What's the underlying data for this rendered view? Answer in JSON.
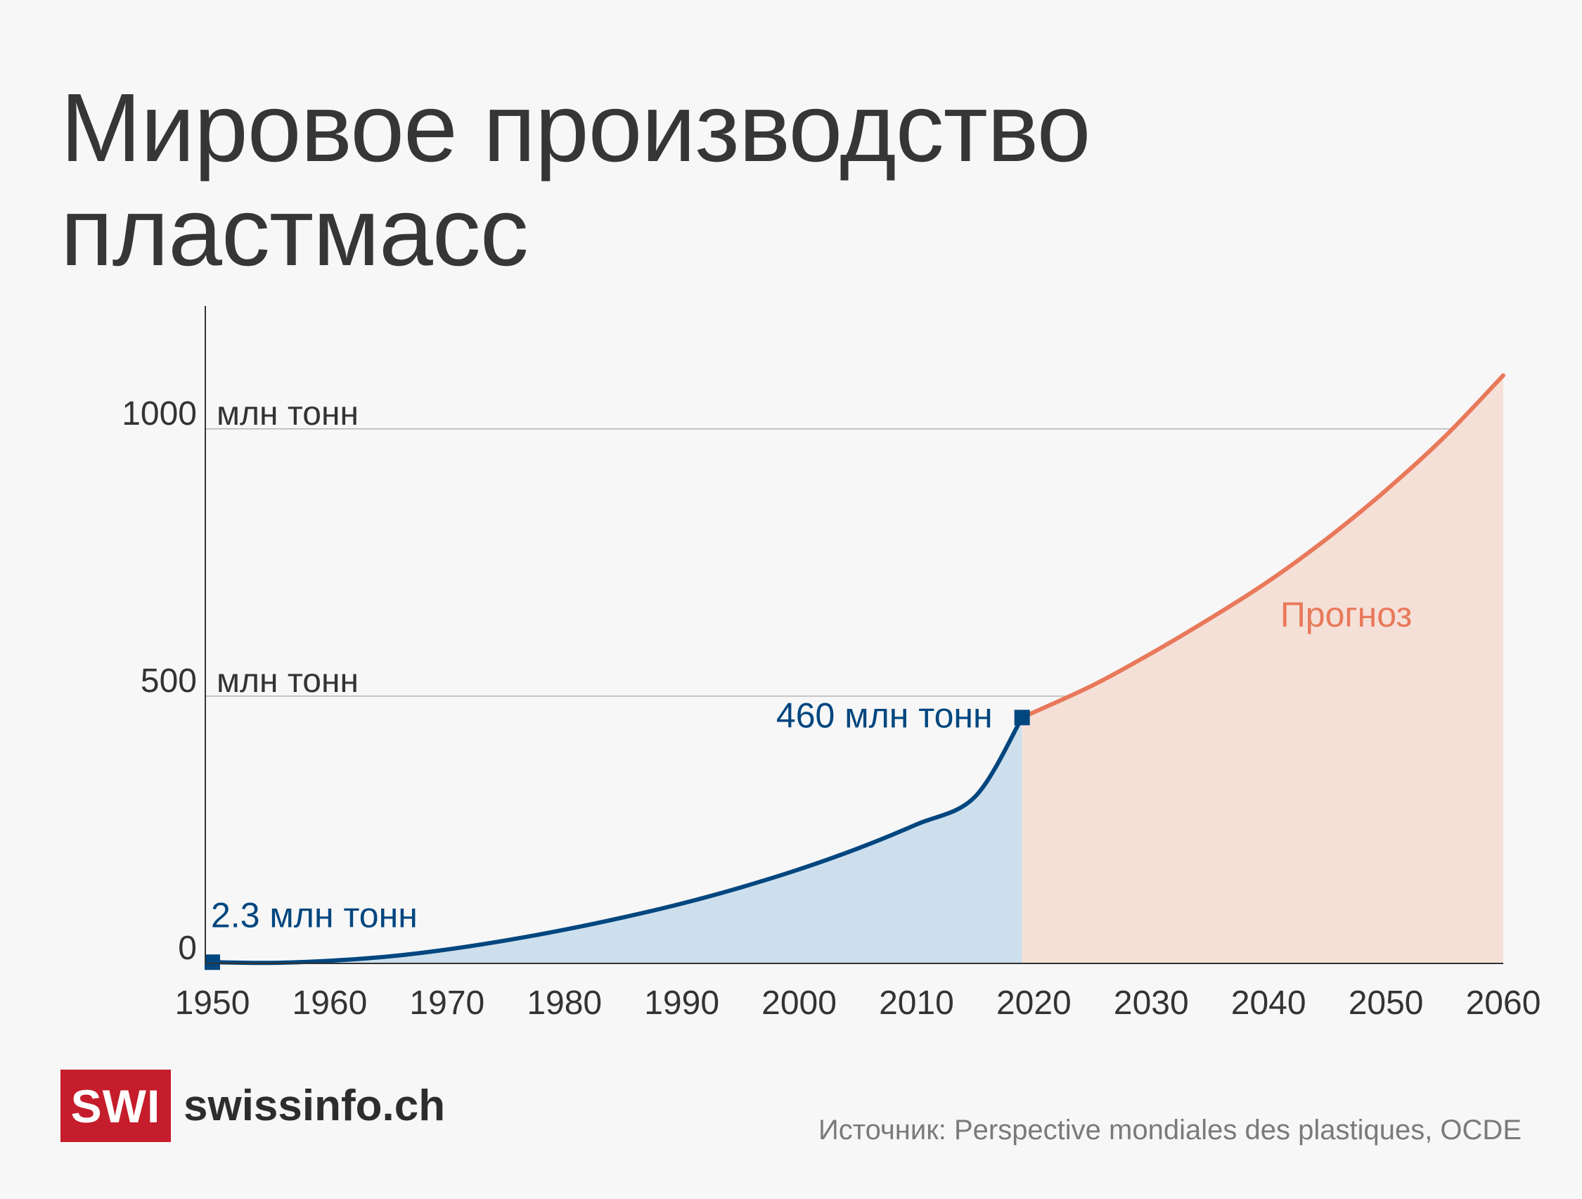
{
  "header": {
    "title_line1": "Мировое производство",
    "title_line2": "пластмасс"
  },
  "chart_data": {
    "type": "area",
    "title": "Мировое производство пластмасс",
    "xlim": [
      1950,
      2060
    ],
    "ylim": [
      0,
      1230
    ],
    "x_ticks": [
      "1950",
      "1960",
      "1970",
      "1980",
      "1990",
      "2000",
      "2010",
      "2020",
      "2030",
      "2040",
      "2050",
      "2060"
    ],
    "y_ticks": [
      {
        "value": 0,
        "label": "0",
        "unit": ""
      },
      {
        "value": 500,
        "label": "500",
        "unit": "млн тонн"
      },
      {
        "value": 1000,
        "label": "1000",
        "unit": "млн тонн"
      }
    ],
    "grid": true,
    "series": [
      {
        "name": "",
        "style": "historical",
        "x": [
          1950,
          1955,
          1960,
          1965,
          1970,
          1975,
          1980,
          1985,
          1990,
          1995,
          2000,
          2005,
          2010,
          2015,
          2019
        ],
        "values": [
          2.3,
          1,
          5,
          13,
          26,
          43,
          63,
          86,
          112,
          142,
          176,
          215,
          260,
          312,
          460
        ]
      },
      {
        "name": "Прогноз",
        "style": "projection",
        "x": [
          2019,
          2025,
          2030,
          2035,
          2040,
          2045,
          2050,
          2055,
          2060
        ],
        "values": [
          460,
          520,
          580,
          645,
          715,
          795,
          885,
          985,
          1100
        ]
      }
    ],
    "annotations": [
      {
        "text": "2.3 млн тонн",
        "x": 1950,
        "y": 2.3
      },
      {
        "text": "460 млн тонн",
        "x": 2019,
        "y": 460
      }
    ],
    "colors": {
      "historical_line": "#00467f",
      "historical_fill": "#cddfed",
      "projection_line": "#e8795a",
      "projection_fill": "#f5e0d8",
      "grid": "#b3b3b3",
      "axis": "#333333"
    }
  },
  "footer": {
    "logo_mark": "SWI",
    "logo_text": "swissinfo.ch",
    "source": "Источник: Perspective mondiales des plastiques, OCDE"
  }
}
